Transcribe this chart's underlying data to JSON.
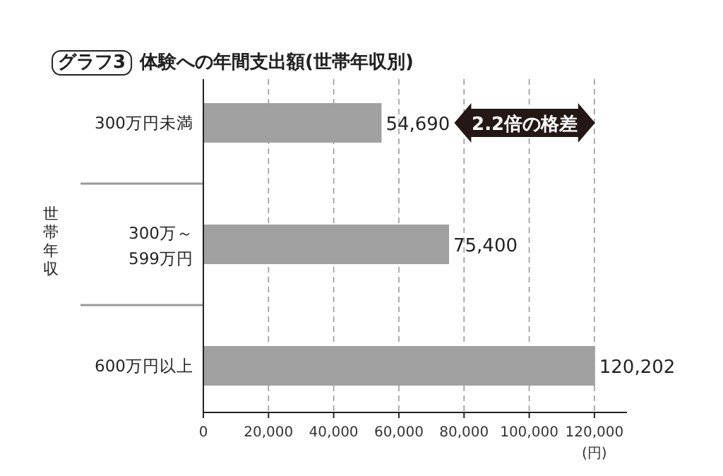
{
  "chart_data": {
    "type": "bar",
    "orientation": "horizontal",
    "title": "グラフ3",
    "subtitle": "体験への年間支出額(世帯年収別)",
    "ylabel": "世帯年収",
    "xlabel": "(円)",
    "categories": [
      "300万円未満",
      "300万～599万円",
      "600万円以上"
    ],
    "values": [
      54690,
      75400,
      120202
    ],
    "value_labels": [
      "54,690",
      "75,400",
      "120,202"
    ],
    "color": "#a0a0a0",
    "xlim": [
      0,
      130000
    ],
    "xticks": [
      0,
      {
        "value": 20000,
        "label": "20,000"
      },
      {
        "value": 40000,
        "label": "40,000"
      },
      {
        "value": 60000,
        "label": "60,000"
      },
      {
        "value": 80000,
        "label": "80,000"
      },
      {
        "value": 100000,
        "label": "100,000"
      },
      {
        "value": 120000,
        "label": "120,000"
      }
    ],
    "grid": "x",
    "annotations": [
      "2.2倍の格差"
    ]
  }
}
